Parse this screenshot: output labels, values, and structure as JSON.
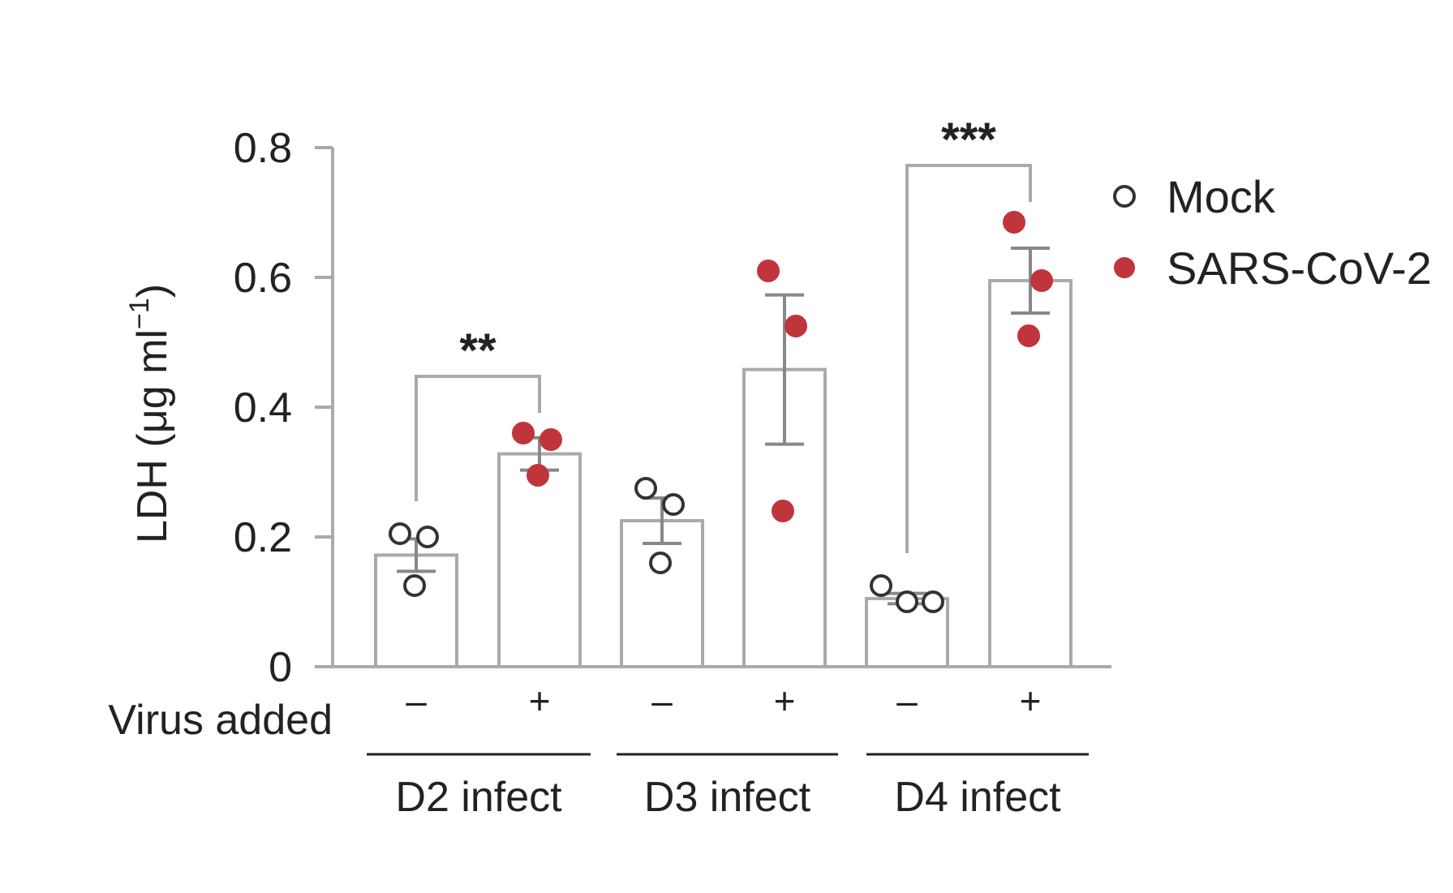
{
  "chart_data": {
    "type": "bar",
    "ylabel": "LDH (μg ml",
    "ylabel_sup": "−1",
    "ylabel_close": ")",
    "ylim": [
      0,
      0.8
    ],
    "yticks": [
      0,
      0.2,
      0.4,
      0.6,
      0.8
    ],
    "ytick_labels": [
      "0",
      "0.2",
      "0.4",
      "0.6",
      "0.8"
    ],
    "grid": false,
    "legend_position": "top-right",
    "virus_row_label": "Virus added",
    "groups": [
      {
        "label": "D2 infect",
        "significance": "**",
        "bars": [
          {
            "series": "Mock",
            "virus": "–",
            "value": 0.172,
            "sem": 0.025,
            "points": [
              0.205,
              0.2,
              0.125
            ]
          },
          {
            "series": "SARS-CoV-2",
            "virus": "+",
            "value": 0.328,
            "sem": 0.025,
            "points": [
              0.36,
              0.35,
              0.295
            ]
          }
        ]
      },
      {
        "label": "D3 infect",
        "significance": "",
        "bars": [
          {
            "series": "Mock",
            "virus": "–",
            "value": 0.225,
            "sem": 0.035,
            "points": [
              0.275,
              0.25,
              0.16
            ]
          },
          {
            "series": "SARS-CoV-2",
            "virus": "+",
            "value": 0.458,
            "sem": 0.115,
            "points": [
              0.61,
              0.525,
              0.24
            ]
          }
        ]
      },
      {
        "label": "D4 infect",
        "significance": "***",
        "bars": [
          {
            "series": "Mock",
            "virus": "–",
            "value": 0.105,
            "sem": 0.008,
            "points": [
              0.125,
              0.1,
              0.1
            ]
          },
          {
            "series": "SARS-CoV-2",
            "virus": "+",
            "value": 0.595,
            "sem": 0.05,
            "points": [
              0.685,
              0.595,
              0.51
            ]
          }
        ]
      }
    ],
    "series": [
      {
        "name": "Mock",
        "marker": "open-circle",
        "color": "#ffffff",
        "edge": "#333333"
      },
      {
        "name": "SARS-CoV-2",
        "marker": "filled-circle",
        "color": "#c0353b",
        "edge": "#c0353b"
      }
    ]
  }
}
